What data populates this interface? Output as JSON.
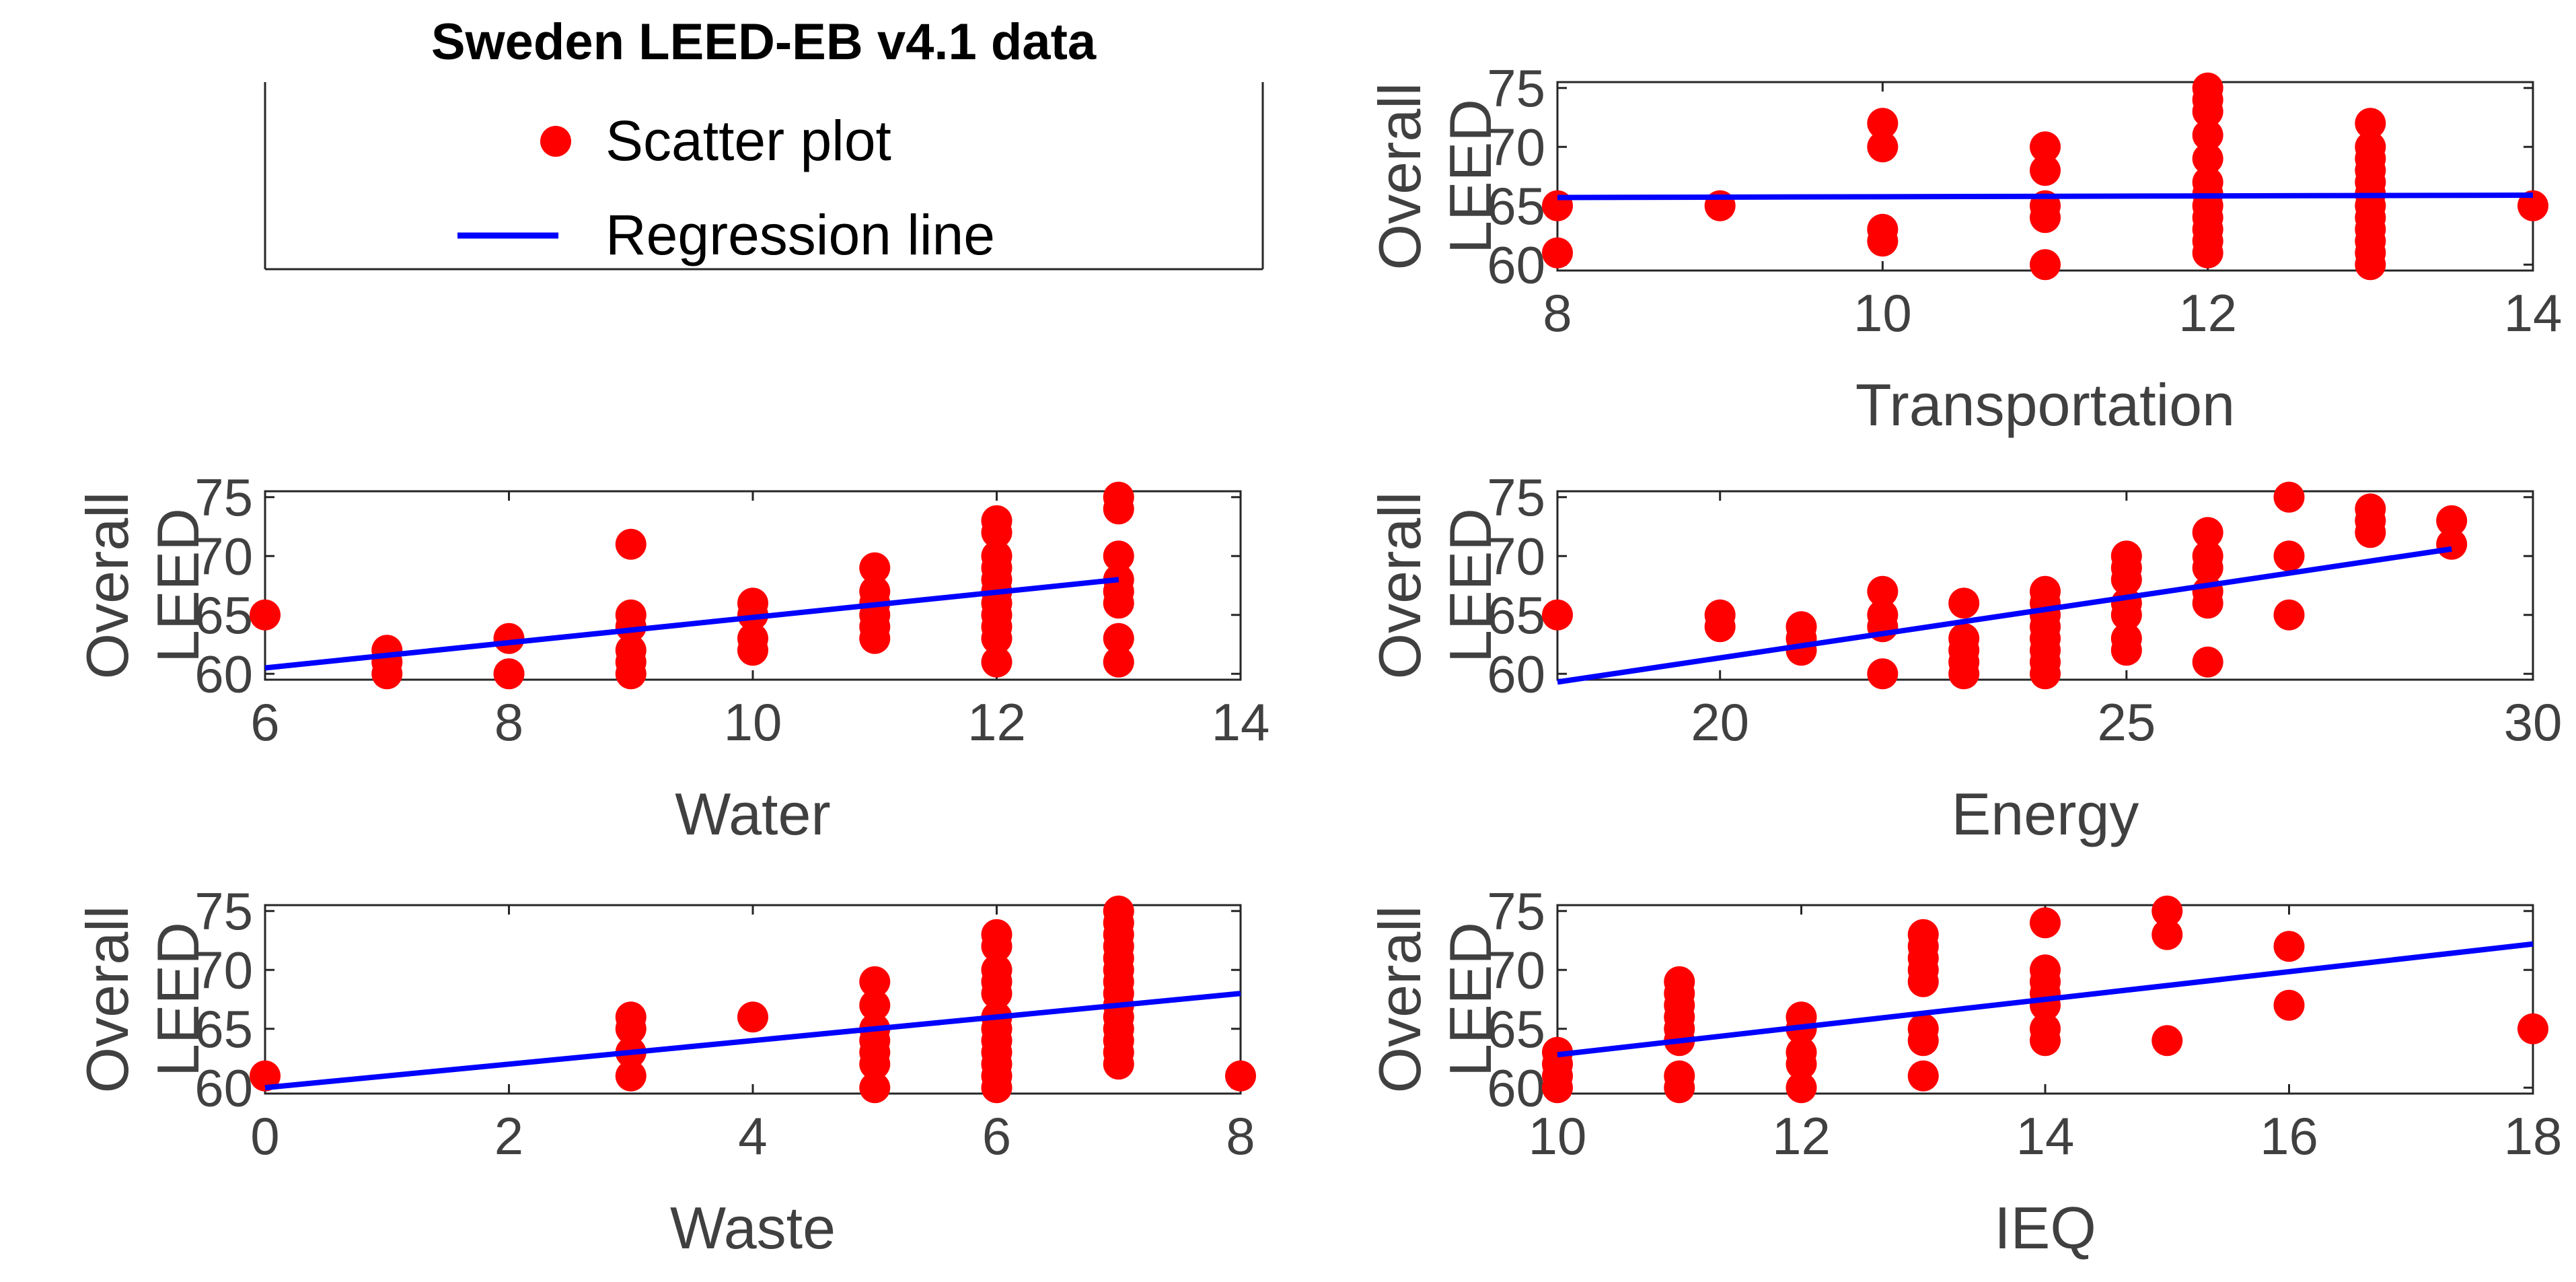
{
  "figure_title": "Sweden LEED-EB v4.1 data",
  "legend": {
    "scatter_label": "Scatter plot",
    "line_label": "Regression line"
  },
  "colors": {
    "scatter": "#ff0000",
    "regression": "#0000ff",
    "axis": "#262626",
    "text": "#404040"
  },
  "chart_data": [
    {
      "type": "scatter",
      "id": "transportation",
      "xlabel": "Transportation",
      "ylabel": [
        "Overall",
        "LEED"
      ],
      "xlim": [
        8,
        14
      ],
      "ylim": [
        59.5,
        75.5
      ],
      "xticks": [
        8,
        10,
        12,
        14
      ],
      "yticks": [
        60,
        65,
        70,
        75
      ],
      "points": [
        [
          8,
          65
        ],
        [
          8,
          61
        ],
        [
          9,
          65
        ],
        [
          10,
          72
        ],
        [
          10,
          70
        ],
        [
          10,
          63
        ],
        [
          10,
          62
        ],
        [
          11,
          70
        ],
        [
          11,
          68
        ],
        [
          11,
          65
        ],
        [
          11,
          64
        ],
        [
          11,
          60
        ],
        [
          12,
          75
        ],
        [
          12,
          74
        ],
        [
          12,
          73
        ],
        [
          12,
          71
        ],
        [
          12,
          69
        ],
        [
          12,
          67
        ],
        [
          12,
          66
        ],
        [
          12,
          65
        ],
        [
          12,
          64
        ],
        [
          12,
          63
        ],
        [
          12,
          62
        ],
        [
          12,
          61
        ],
        [
          13,
          72
        ],
        [
          13,
          70
        ],
        [
          13,
          69
        ],
        [
          13,
          68
        ],
        [
          13,
          67
        ],
        [
          13,
          66
        ],
        [
          13,
          65
        ],
        [
          13,
          64
        ],
        [
          13,
          63
        ],
        [
          13,
          62
        ],
        [
          13,
          61
        ],
        [
          13,
          60
        ],
        [
          14,
          65
        ]
      ],
      "regression": [
        [
          8,
          65.7
        ],
        [
          14,
          65.9
        ]
      ]
    },
    {
      "type": "scatter",
      "id": "water",
      "xlabel": "Water",
      "ylabel": [
        "Overall",
        "LEED"
      ],
      "xlim": [
        6,
        14
      ],
      "ylim": [
        59.5,
        75.5
      ],
      "xticks": [
        6,
        8,
        10,
        12,
        14
      ],
      "yticks": [
        60,
        65,
        70,
        75
      ],
      "points": [
        [
          6,
          65
        ],
        [
          7,
          62
        ],
        [
          7,
          61
        ],
        [
          7,
          60
        ],
        [
          8,
          63
        ],
        [
          8,
          60
        ],
        [
          9,
          71
        ],
        [
          9,
          65
        ],
        [
          9,
          64
        ],
        [
          9,
          62
        ],
        [
          9,
          61
        ],
        [
          9,
          60
        ],
        [
          10,
          66
        ],
        [
          10,
          65
        ],
        [
          10,
          63
        ],
        [
          10,
          62
        ],
        [
          11,
          69
        ],
        [
          11,
          67
        ],
        [
          11,
          66
        ],
        [
          11,
          65
        ],
        [
          11,
          64
        ],
        [
          11,
          63
        ],
        [
          12,
          73
        ],
        [
          12,
          72
        ],
        [
          12,
          70
        ],
        [
          12,
          69
        ],
        [
          12,
          68
        ],
        [
          12,
          67
        ],
        [
          12,
          66
        ],
        [
          12,
          65
        ],
        [
          12,
          64
        ],
        [
          12,
          63
        ],
        [
          12,
          61
        ],
        [
          13,
          75
        ],
        [
          13,
          74
        ],
        [
          13,
          70
        ],
        [
          13,
          68
        ],
        [
          13,
          67
        ],
        [
          13,
          66
        ],
        [
          13,
          63
        ],
        [
          13,
          61
        ]
      ],
      "regression": [
        [
          6,
          60.5
        ],
        [
          13,
          68.0
        ]
      ]
    },
    {
      "type": "scatter",
      "id": "energy",
      "xlabel": "Energy",
      "ylabel": [
        "Overall",
        "LEED"
      ],
      "xlim": [
        18,
        30
      ],
      "ylim": [
        59.5,
        75.5
      ],
      "xticks": [
        20,
        25,
        30
      ],
      "yticks": [
        60,
        65,
        70,
        75
      ],
      "points": [
        [
          18,
          65
        ],
        [
          20,
          65
        ],
        [
          20,
          64
        ],
        [
          21,
          64
        ],
        [
          21,
          63
        ],
        [
          21,
          62
        ],
        [
          22,
          67
        ],
        [
          22,
          65
        ],
        [
          22,
          64
        ],
        [
          22,
          60
        ],
        [
          23,
          66
        ],
        [
          23,
          63
        ],
        [
          23,
          62
        ],
        [
          23,
          61
        ],
        [
          23,
          60
        ],
        [
          24,
          67
        ],
        [
          24,
          66
        ],
        [
          24,
          65
        ],
        [
          24,
          64
        ],
        [
          24,
          63
        ],
        [
          24,
          62
        ],
        [
          24,
          61
        ],
        [
          24,
          60
        ],
        [
          25,
          70
        ],
        [
          25,
          69
        ],
        [
          25,
          68
        ],
        [
          25,
          66
        ],
        [
          25,
          65
        ],
        [
          25,
          63
        ],
        [
          25,
          62
        ],
        [
          26,
          72
        ],
        [
          26,
          70
        ],
        [
          26,
          69
        ],
        [
          26,
          67
        ],
        [
          26,
          66
        ],
        [
          26,
          61
        ],
        [
          27,
          75
        ],
        [
          27,
          70
        ],
        [
          27,
          65
        ],
        [
          28,
          74
        ],
        [
          28,
          73
        ],
        [
          28,
          72
        ],
        [
          29,
          73
        ],
        [
          29,
          71
        ]
      ],
      "regression": [
        [
          18,
          59.3
        ],
        [
          29,
          70.6
        ]
      ]
    },
    {
      "type": "scatter",
      "id": "waste",
      "xlabel": "Waste",
      "ylabel": [
        "Overall",
        "LEED"
      ],
      "xlim": [
        0,
        8
      ],
      "ylim": [
        59.5,
        75.5
      ],
      "xticks": [
        0,
        2,
        4,
        6,
        8
      ],
      "yticks": [
        60,
        65,
        70,
        75
      ],
      "points": [
        [
          0,
          61
        ],
        [
          3,
          66
        ],
        [
          3,
          65
        ],
        [
          3,
          63
        ],
        [
          3,
          61
        ],
        [
          4,
          66
        ],
        [
          5,
          69
        ],
        [
          5,
          67
        ],
        [
          5,
          65
        ],
        [
          5,
          64
        ],
        [
          5,
          63
        ],
        [
          5,
          62
        ],
        [
          5,
          60
        ],
        [
          6,
          73
        ],
        [
          6,
          72
        ],
        [
          6,
          70
        ],
        [
          6,
          69
        ],
        [
          6,
          68
        ],
        [
          6,
          66
        ],
        [
          6,
          65
        ],
        [
          6,
          64
        ],
        [
          6,
          63
        ],
        [
          6,
          62
        ],
        [
          6,
          61
        ],
        [
          6,
          60
        ],
        [
          7,
          75
        ],
        [
          7,
          74
        ],
        [
          7,
          73
        ],
        [
          7,
          72
        ],
        [
          7,
          71
        ],
        [
          7,
          70
        ],
        [
          7,
          69
        ],
        [
          7,
          68
        ],
        [
          7,
          67
        ],
        [
          7,
          66
        ],
        [
          7,
          65
        ],
        [
          7,
          64
        ],
        [
          7,
          63
        ],
        [
          7,
          62
        ],
        [
          8,
          61
        ]
      ],
      "regression": [
        [
          0,
          60.0
        ],
        [
          8,
          68.0
        ]
      ]
    },
    {
      "type": "scatter",
      "id": "ieq",
      "xlabel": "IEQ",
      "ylabel": [
        "Overall",
        "LEED"
      ],
      "xlim": [
        10,
        18
      ],
      "ylim": [
        59.5,
        75.5
      ],
      "xticks": [
        10,
        12,
        14,
        16,
        18
      ],
      "yticks": [
        60,
        65,
        70,
        75
      ],
      "points": [
        [
          10,
          63
        ],
        [
          10,
          62
        ],
        [
          10,
          61
        ],
        [
          10,
          60
        ],
        [
          11,
          69
        ],
        [
          11,
          68
        ],
        [
          11,
          67
        ],
        [
          11,
          66
        ],
        [
          11,
          65
        ],
        [
          11,
          64
        ],
        [
          11,
          61
        ],
        [
          11,
          60
        ],
        [
          12,
          66
        ],
        [
          12,
          65
        ],
        [
          12,
          63
        ],
        [
          12,
          62
        ],
        [
          12,
          60
        ],
        [
          13,
          73
        ],
        [
          13,
          72
        ],
        [
          13,
          71
        ],
        [
          13,
          70
        ],
        [
          13,
          69
        ],
        [
          13,
          65
        ],
        [
          13,
          64
        ],
        [
          13,
          61
        ],
        [
          14,
          74
        ],
        [
          14,
          70
        ],
        [
          14,
          69
        ],
        [
          14,
          68
        ],
        [
          14,
          67
        ],
        [
          14,
          65
        ],
        [
          14,
          64
        ],
        [
          15,
          75
        ],
        [
          15,
          73
        ],
        [
          15,
          64
        ],
        [
          16,
          72
        ],
        [
          16,
          67
        ],
        [
          18,
          65
        ]
      ],
      "regression": [
        [
          10,
          62.8
        ],
        [
          18,
          72.2
        ]
      ]
    }
  ]
}
